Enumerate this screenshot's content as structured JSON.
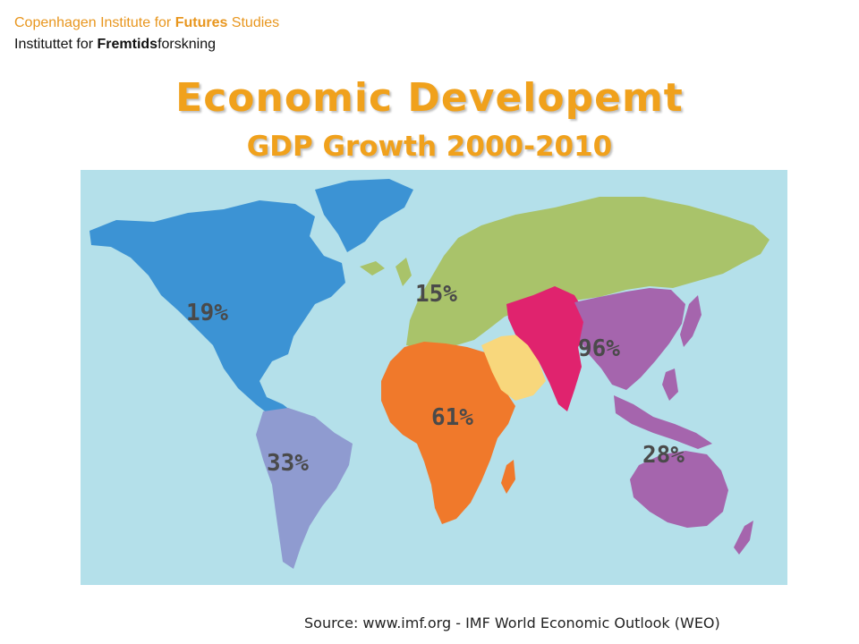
{
  "header": {
    "institute_en": {
      "part1": "Copenhagen Institute for ",
      "bold": "Futures",
      "part2": " Studies"
    },
    "institute_da": {
      "part1": "Instituttet for ",
      "bold": "Fremtids",
      "part2": "forskning"
    }
  },
  "title": "Economic Developemt",
  "subtitle": "GDP Growth 2000-2010",
  "regions": [
    {
      "name": "North America",
      "growth_percent": 19,
      "label": "19%",
      "color": "#3c93d4"
    },
    {
      "name": "South America",
      "growth_percent": 33,
      "label": "33%",
      "color": "#8f9bd0"
    },
    {
      "name": "Europe and Russia",
      "growth_percent": 15,
      "label": "15%",
      "color": "#a9c36a"
    },
    {
      "name": "Africa",
      "growth_percent": 61,
      "label": "61%",
      "color": "#f0792b"
    },
    {
      "name": "Middle East",
      "growth_percent": null,
      "label": "",
      "color": "#f8d77c"
    },
    {
      "name": "Central and South Asia",
      "growth_percent": null,
      "label": "",
      "color": "#e0236e"
    },
    {
      "name": "East Asia",
      "growth_percent": 96,
      "label": "96%",
      "color": "#a565ad"
    },
    {
      "name": "Oceania and Southeast Asia",
      "growth_percent": 28,
      "label": "28%",
      "color": "#a565ad"
    }
  ],
  "colors": {
    "ocean": "#b4e0ea",
    "title": "#f0a11c",
    "label": "#4a4a4a"
  },
  "source": "Source: www.imf.org - IMF World Economic Outlook (WEO)"
}
